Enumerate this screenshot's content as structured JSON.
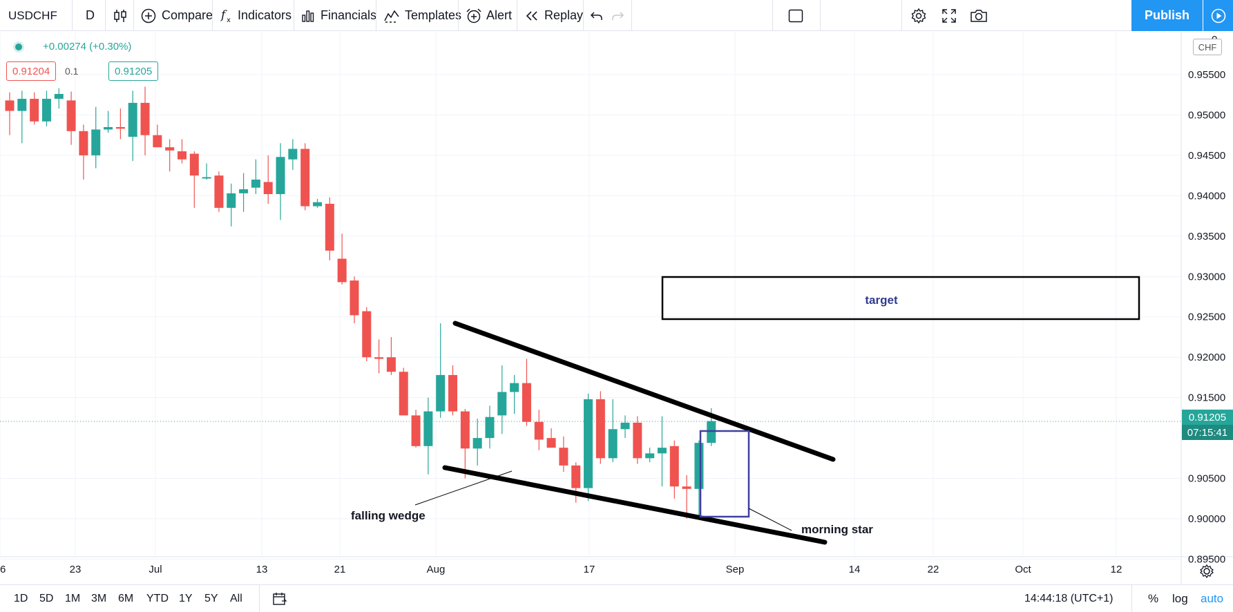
{
  "toolbar": {
    "symbol": "USDCHF",
    "interval": "D",
    "compare": "Compare",
    "indicators": "Indicators",
    "financials": "Financials",
    "templates": "Templates",
    "alert": "Alert",
    "replay": "Replay",
    "publish": "Publish"
  },
  "legend": {
    "change": "+0.00274 (+0.30%)",
    "bid": "0.91204",
    "spread": "0.1",
    "ask": "0.91205"
  },
  "price_scale": {
    "currency": "CHF",
    "labels": [
      "0.95500",
      "0.95000",
      "0.94500",
      "0.94000",
      "0.93500",
      "0.93000",
      "0.92500",
      "0.92000",
      "0.91500",
      "0.90500",
      "0.90000",
      "0.89500"
    ],
    "top_partial": "0",
    "last_price": "0.91205",
    "countdown": "07:15:41"
  },
  "time_scale": {
    "labels": [
      "6",
      "23",
      "Jul",
      "13",
      "21",
      "Aug",
      "17",
      "Sep",
      "14",
      "22",
      "Oct",
      "12"
    ]
  },
  "annotations": {
    "target": "target",
    "falling_wedge": "falling wedge",
    "morning_star": "morning star"
  },
  "bottom": {
    "timeframes": [
      "1D",
      "5D",
      "1M",
      "3M",
      "6M",
      "YTD",
      "1Y",
      "5Y",
      "All"
    ],
    "clock": "14:44:18 (UTC+1)",
    "percent": "%",
    "log": "log",
    "auto": "auto"
  },
  "colors": {
    "up": "#26a69a",
    "down": "#ef5350",
    "accent": "#2196f3",
    "grid": "#f0f3fa"
  },
  "chart_data": {
    "type": "candlestick",
    "symbol": "USDCHF",
    "interval": "D",
    "ylim": [
      0.8953,
      0.9603
    ],
    "candles": [
      {
        "o": 0.9518,
        "h": 0.9528,
        "l": 0.9475,
        "c": 0.9505
      },
      {
        "o": 0.9505,
        "h": 0.953,
        "l": 0.9465,
        "c": 0.952
      },
      {
        "o": 0.952,
        "h": 0.9528,
        "l": 0.9488,
        "c": 0.9492
      },
      {
        "o": 0.9492,
        "h": 0.953,
        "l": 0.9486,
        "c": 0.952
      },
      {
        "o": 0.952,
        "h": 0.9533,
        "l": 0.9508,
        "c": 0.9526
      },
      {
        "o": 0.9518,
        "h": 0.9529,
        "l": 0.9463,
        "c": 0.948
      },
      {
        "o": 0.948,
        "h": 0.9488,
        "l": 0.942,
        "c": 0.945
      },
      {
        "o": 0.945,
        "h": 0.951,
        "l": 0.9434,
        "c": 0.9482
      },
      {
        "o": 0.9482,
        "h": 0.9505,
        "l": 0.9478,
        "c": 0.9485
      },
      {
        "o": 0.9485,
        "h": 0.9508,
        "l": 0.947,
        "c": 0.9483
      },
      {
        "o": 0.9473,
        "h": 0.953,
        "l": 0.9443,
        "c": 0.9515
      },
      {
        "o": 0.9515,
        "h": 0.9535,
        "l": 0.945,
        "c": 0.9475
      },
      {
        "o": 0.9475,
        "h": 0.9488,
        "l": 0.946,
        "c": 0.946
      },
      {
        "o": 0.946,
        "h": 0.947,
        "l": 0.943,
        "c": 0.9456
      },
      {
        "o": 0.9455,
        "h": 0.947,
        "l": 0.944,
        "c": 0.9445
      },
      {
        "o": 0.9452,
        "h": 0.9455,
        "l": 0.9385,
        "c": 0.9425
      },
      {
        "o": 0.9423,
        "h": 0.944,
        "l": 0.942,
        "c": 0.9423
      },
      {
        "o": 0.9425,
        "h": 0.943,
        "l": 0.938,
        "c": 0.9385
      },
      {
        "o": 0.9385,
        "h": 0.9415,
        "l": 0.9362,
        "c": 0.9403
      },
      {
        "o": 0.9403,
        "h": 0.9428,
        "l": 0.938,
        "c": 0.9408
      },
      {
        "o": 0.941,
        "h": 0.9445,
        "l": 0.9402,
        "c": 0.942
      },
      {
        "o": 0.9417,
        "h": 0.945,
        "l": 0.939,
        "c": 0.9402
      },
      {
        "o": 0.9402,
        "h": 0.9465,
        "l": 0.937,
        "c": 0.9448
      },
      {
        "o": 0.9445,
        "h": 0.947,
        "l": 0.9432,
        "c": 0.9458
      },
      {
        "o": 0.9458,
        "h": 0.9465,
        "l": 0.9382,
        "c": 0.9387
      },
      {
        "o": 0.9387,
        "h": 0.9396,
        "l": 0.9385,
        "c": 0.9392
      },
      {
        "o": 0.939,
        "h": 0.9398,
        "l": 0.932,
        "c": 0.9332
      },
      {
        "o": 0.9322,
        "h": 0.9353,
        "l": 0.929,
        "c": 0.9293
      },
      {
        "o": 0.9295,
        "h": 0.93,
        "l": 0.9242,
        "c": 0.9252
      },
      {
        "o": 0.9257,
        "h": 0.9262,
        "l": 0.9195,
        "c": 0.92
      },
      {
        "o": 0.92,
        "h": 0.9222,
        "l": 0.918,
        "c": 0.9198
      },
      {
        "o": 0.92,
        "h": 0.9225,
        "l": 0.9178,
        "c": 0.9182
      },
      {
        "o": 0.9182,
        "h": 0.9187,
        "l": 0.9128,
        "c": 0.9128
      },
      {
        "o": 0.9128,
        "h": 0.9135,
        "l": 0.9088,
        "c": 0.909
      },
      {
        "o": 0.909,
        "h": 0.915,
        "l": 0.9055,
        "c": 0.9133
      },
      {
        "o": 0.9133,
        "h": 0.9242,
        "l": 0.9125,
        "c": 0.9178
      },
      {
        "o": 0.9178,
        "h": 0.919,
        "l": 0.9128,
        "c": 0.9133
      },
      {
        "o": 0.9133,
        "h": 0.9136,
        "l": 0.905,
        "c": 0.9087
      },
      {
        "o": 0.9087,
        "h": 0.9124,
        "l": 0.9066,
        "c": 0.91
      },
      {
        "o": 0.91,
        "h": 0.914,
        "l": 0.9087,
        "c": 0.9126
      },
      {
        "o": 0.9128,
        "h": 0.919,
        "l": 0.9105,
        "c": 0.9157
      },
      {
        "o": 0.9157,
        "h": 0.9178,
        "l": 0.913,
        "c": 0.9168
      },
      {
        "o": 0.9168,
        "h": 0.9198,
        "l": 0.9115,
        "c": 0.912
      },
      {
        "o": 0.912,
        "h": 0.9135,
        "l": 0.9085,
        "c": 0.9098
      },
      {
        "o": 0.91,
        "h": 0.9112,
        "l": 0.9088,
        "c": 0.9088
      },
      {
        "o": 0.9088,
        "h": 0.9102,
        "l": 0.9058,
        "c": 0.9066
      },
      {
        "o": 0.9066,
        "h": 0.907,
        "l": 0.902,
        "c": 0.9038
      },
      {
        "o": 0.9038,
        "h": 0.9155,
        "l": 0.9022,
        "c": 0.9148
      },
      {
        "o": 0.9148,
        "h": 0.9158,
        "l": 0.9068,
        "c": 0.9075
      },
      {
        "o": 0.9075,
        "h": 0.9148,
        "l": 0.907,
        "c": 0.9111
      },
      {
        "o": 0.9111,
        "h": 0.9128,
        "l": 0.91,
        "c": 0.9119
      },
      {
        "o": 0.9119,
        "h": 0.9127,
        "l": 0.9068,
        "c": 0.9075
      },
      {
        "o": 0.9075,
        "h": 0.9088,
        "l": 0.907,
        "c": 0.9081
      },
      {
        "o": 0.9081,
        "h": 0.9127,
        "l": 0.904,
        "c": 0.9088
      },
      {
        "o": 0.909,
        "h": 0.9097,
        "l": 0.9025,
        "c": 0.904
      },
      {
        "o": 0.904,
        "h": 0.9054,
        "l": 0.9,
        "c": 0.9037
      },
      {
        "o": 0.9037,
        "h": 0.9097,
        "l": 0.9,
        "c": 0.9094
      },
      {
        "o": 0.9094,
        "h": 0.9137,
        "l": 0.909,
        "c": 0.9121
      }
    ],
    "wedge_upper": [
      [
        "2020-07-31",
        0.9245
      ],
      [
        "2020-09-11",
        0.9068
      ]
    ],
    "wedge_lower": [
      [
        "2020-07-31",
        0.9058
      ],
      [
        "2020-09-10",
        0.8963
      ]
    ],
    "target_zone": [
      0.9248,
      0.9302
    ],
    "last_price": 0.91205
  }
}
